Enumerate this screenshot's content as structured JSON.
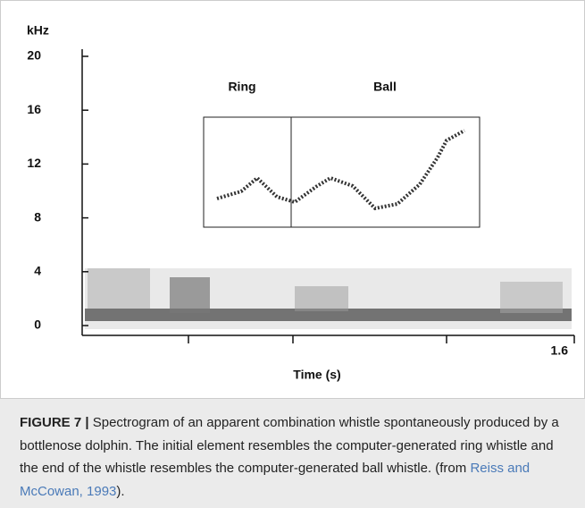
{
  "figure": {
    "y_unit": "kHz",
    "y_tick_labels": [
      "20",
      "16",
      "12",
      "8",
      "4",
      "0"
    ],
    "x_end_label": "1.6",
    "x_label": "Time (s)",
    "annotations": [
      "Ring",
      "Ball"
    ]
  },
  "caption": {
    "label": "FIGURE 7",
    "separator": "|",
    "text": "Spectrogram of an apparent combination whistle spontaneously produced by a bottlenose dolphin. The initial element resembles the computer-generated ring whistle and the end of the whistle resembles the computer-generated ball whistle. (from",
    "citation": "Reiss and McCowan, 1993",
    "end": ")."
  }
}
